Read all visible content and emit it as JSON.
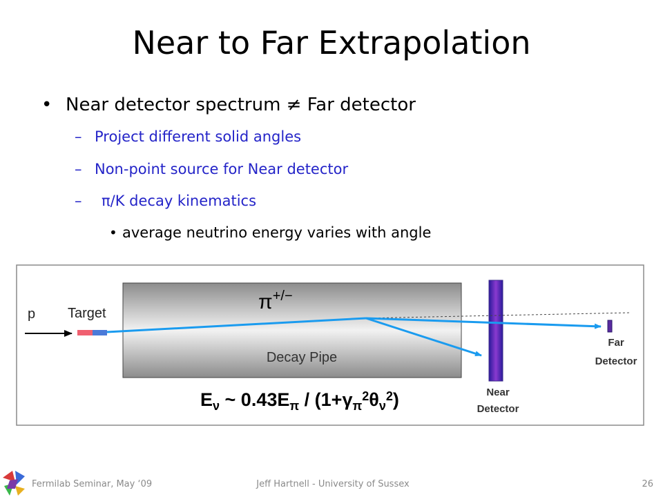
{
  "header": {
    "title": "Near to Far Extrapolation"
  },
  "bullets": [
    {
      "text": "Near detector spectrum ≠ Far detector",
      "sub": [
        "Project different solid angles",
        "Non-point source for Near detector",
        "π/K decay kinematics"
      ],
      "subsub": [
        "average neutrino energy varies with angle"
      ]
    }
  ],
  "diagram": {
    "proton": "p",
    "target": "Target",
    "pion": {
      "symbol": "π",
      "charge": "+/−"
    },
    "decay_pipe": "Decay Pipe",
    "formula": [
      "E",
      "ν",
      " ~ 0.43E",
      "π",
      " / (1+",
      "γ",
      "π",
      "2",
      "θ",
      "ν",
      "2",
      ")"
    ],
    "near_detector": [
      "Near",
      "Detector"
    ],
    "far_detector": [
      "Far",
      "Detector"
    ]
  },
  "footer": {
    "left": "Fermilab Seminar, May ‘09",
    "center": "Jeff Hartnell - University of Sussex",
    "page": "26"
  }
}
